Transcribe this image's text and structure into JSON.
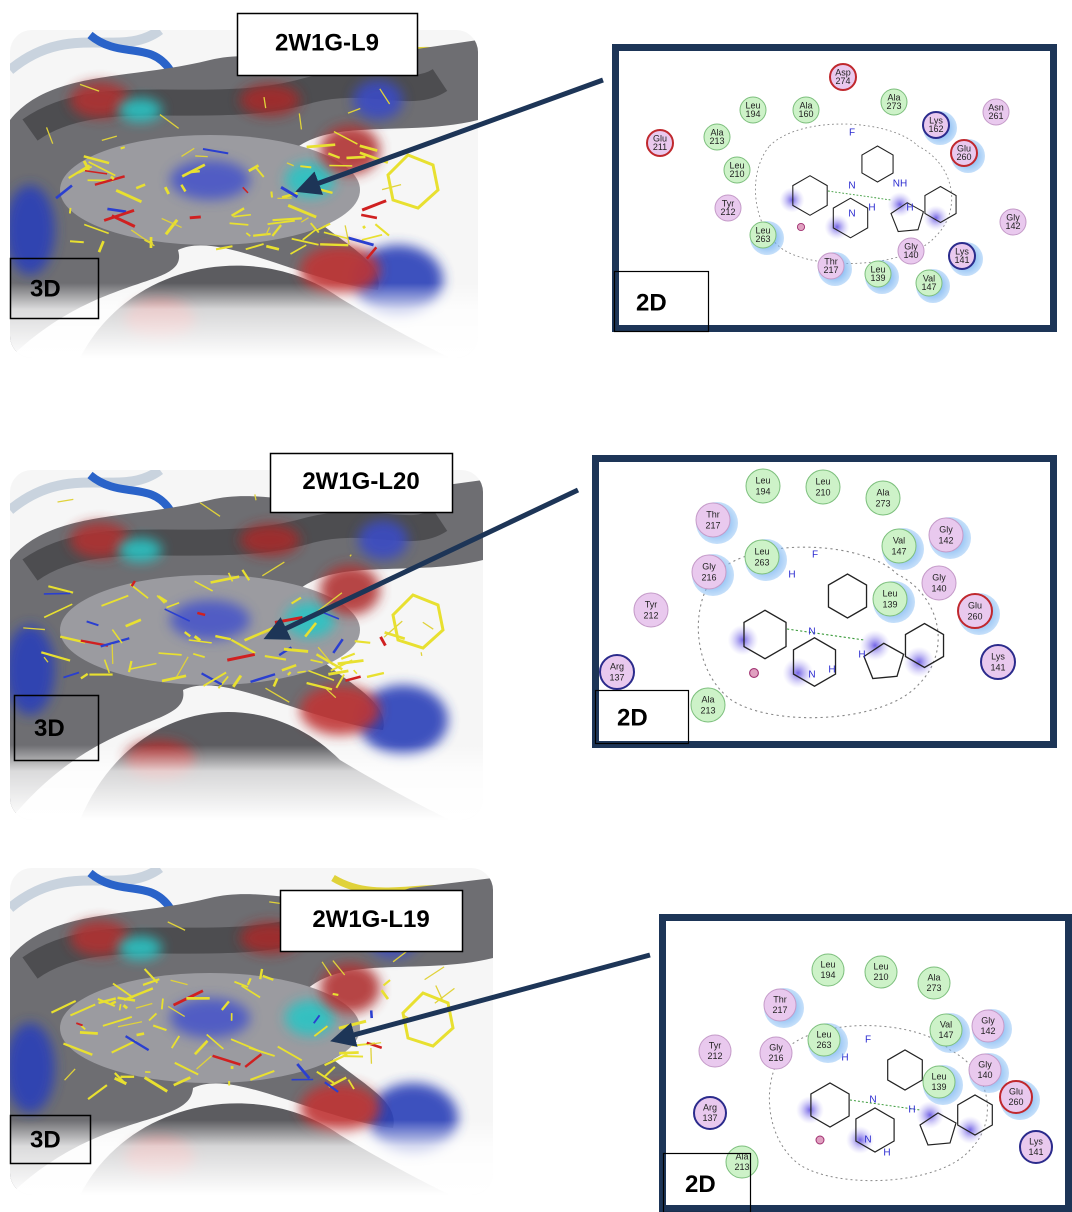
{
  "panels": [
    {
      "title": "2W1G-L9",
      "label_3d": "3D",
      "label_2d": "2D",
      "atoms": [
        "F",
        "N",
        "N",
        "H",
        "NH",
        "H"
      ],
      "residues": [
        {
          "name": "Asp",
          "number": 274
        },
        {
          "name": "Leu",
          "number": 194
        },
        {
          "name": "Ala",
          "number": 160
        },
        {
          "name": "Ala",
          "number": 273
        },
        {
          "name": "Lys",
          "number": 162
        },
        {
          "name": "Asn",
          "number": 261
        },
        {
          "name": "Glu",
          "number": 211
        },
        {
          "name": "Ala",
          "number": 213
        },
        {
          "name": "Glu",
          "number": 260
        },
        {
          "name": "Leu",
          "number": 210
        },
        {
          "name": "Tyr",
          "number": 212
        },
        {
          "name": "Leu",
          "number": 263
        },
        {
          "name": "Gly",
          "number": 142
        },
        {
          "name": "Gly",
          "number": 140
        },
        {
          "name": "Lys",
          "number": 141
        },
        {
          "name": "Thr",
          "number": 217
        },
        {
          "name": "Leu",
          "number": 139
        },
        {
          "name": "Val",
          "number": 147
        }
      ]
    },
    {
      "title": "2W1G-L20",
      "label_3d": "3D",
      "label_2d": "2D",
      "atoms": [
        "F",
        "H",
        "N",
        "N",
        "H",
        "H"
      ],
      "residues": [
        {
          "name": "Leu",
          "number": 194
        },
        {
          "name": "Leu",
          "number": 210
        },
        {
          "name": "Ala",
          "number": 273
        },
        {
          "name": "Thr",
          "number": 217
        },
        {
          "name": "Gly",
          "number": 142
        },
        {
          "name": "Leu",
          "number": 263
        },
        {
          "name": "Val",
          "number": 147
        },
        {
          "name": "Gly",
          "number": 216
        },
        {
          "name": "Gly",
          "number": 140
        },
        {
          "name": "Leu",
          "number": 139
        },
        {
          "name": "Tyr",
          "number": 212
        },
        {
          "name": "Glu",
          "number": 260
        },
        {
          "name": "Lys",
          "number": 141
        },
        {
          "name": "Arg",
          "number": 137
        },
        {
          "name": "Ala",
          "number": 213
        }
      ]
    },
    {
      "title": "2W1G-L19",
      "label_3d": "3D",
      "label_2d": "2D",
      "atoms": [
        "F",
        "H",
        "N",
        "N",
        "H",
        "H"
      ],
      "residues": [
        {
          "name": "Leu",
          "number": 194
        },
        {
          "name": "Leu",
          "number": 210
        },
        {
          "name": "Ala",
          "number": 273
        },
        {
          "name": "Thr",
          "number": 217
        },
        {
          "name": "Gly",
          "number": 142
        },
        {
          "name": "Val",
          "number": 147
        },
        {
          "name": "Leu",
          "number": 263
        },
        {
          "name": "Gly",
          "number": 216
        },
        {
          "name": "Gly",
          "number": 140
        },
        {
          "name": "Tyr",
          "number": 212
        },
        {
          "name": "Leu",
          "number": 139
        },
        {
          "name": "Glu",
          "number": 260
        },
        {
          "name": "Arg",
          "number": 137
        },
        {
          "name": "Lys",
          "number": 141
        },
        {
          "name": "Ala",
          "number": 213
        }
      ]
    }
  ]
}
